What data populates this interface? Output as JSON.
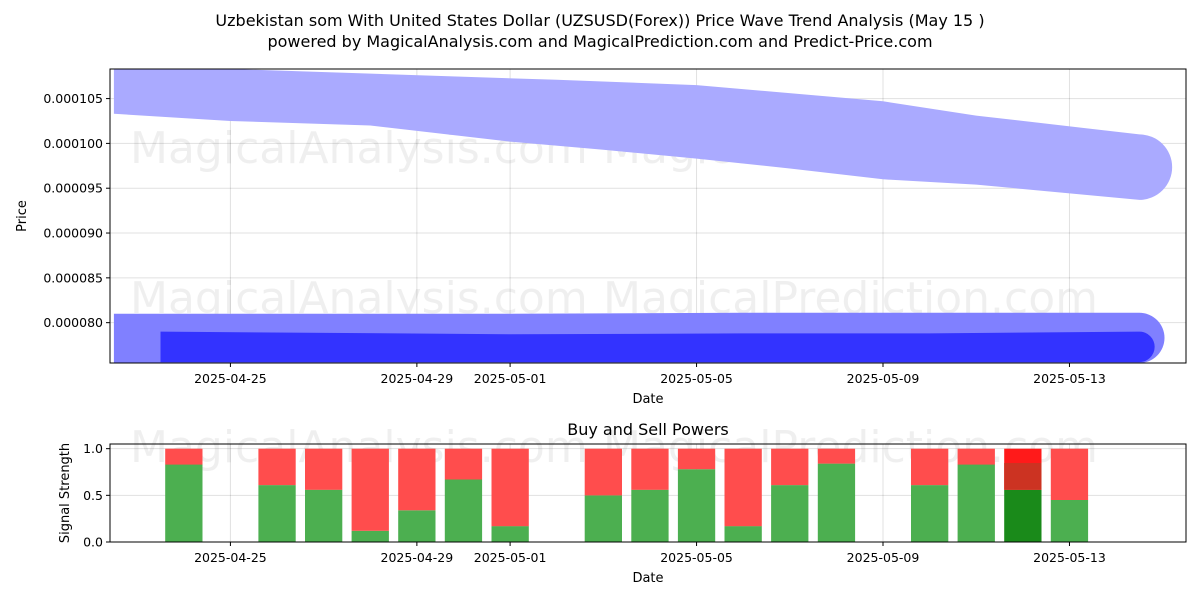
{
  "figure": {
    "title_line1": "Uzbekistan som With United States Dollar (UZSUSD(Forex)) Price Wave Trend Analysis (May 15 )",
    "title_line2": "powered by MagicalAnalysis.com and MagicalPrediction.com and Predict-Price.com",
    "watermarks": [
      "MagicalAnalysis.com",
      "MagicalPrediction.com"
    ]
  },
  "chart_data": [
    {
      "type": "area",
      "title": "",
      "xlabel": "Date",
      "ylabel": "Price",
      "xlim": [
        "2025-04-22T10:00",
        "2025-05-15T12:00"
      ],
      "ylim": [
        7.55e-05,
        0.0001083
      ],
      "x_ticks": [
        "2025-04-25",
        "2025-04-29",
        "2025-05-01",
        "2025-05-05",
        "2025-05-09",
        "2025-05-13"
      ],
      "y_ticks": [
        8e-05,
        8.5e-05,
        9e-05,
        9.5e-05,
        0.0001,
        0.000105
      ],
      "y_tick_labels": [
        "0.000080",
        "0.000085",
        "0.000090",
        "0.000095",
        "0.000100",
        "0.000105"
      ],
      "grid": true,
      "series": [
        {
          "color": "#aaaaff",
          "upper": [
            {
              "x": "2025-04-22T12:00",
              "y": 0.0001083
            },
            {
              "x": "2025-04-25",
              "y": 0.0001083
            },
            {
              "x": "2025-05-02",
              "y": 0.0001071
            },
            {
              "x": "2025-05-05",
              "y": 0.0001065
            },
            {
              "x": "2025-05-09",
              "y": 0.0001047
            },
            {
              "x": "2025-05-11",
              "y": 0.0001031
            },
            {
              "x": "2025-05-14T12:00",
              "y": 0.000101
            }
          ],
          "lower": [
            {
              "x": "2025-04-22T12:00",
              "y": 0.0001033
            },
            {
              "x": "2025-04-25",
              "y": 0.0001025
            },
            {
              "x": "2025-04-28",
              "y": 0.000102
            },
            {
              "x": "2025-05-01",
              "y": 0.0001002
            },
            {
              "x": "2025-05-03",
              "y": 9.93e-05
            },
            {
              "x": "2025-05-05",
              "y": 9.83e-05
            },
            {
              "x": "2025-05-07",
              "y": 9.72e-05
            },
            {
              "x": "2025-05-09",
              "y": 9.6e-05
            },
            {
              "x": "2025-05-11",
              "y": 9.54e-05
            },
            {
              "x": "2025-05-14T12:00",
              "y": 9.37e-05
            }
          ]
        },
        {
          "color": "#8080ff",
          "upper": [
            {
              "x": "2025-04-22T12:00",
              "y": 8.1e-05
            },
            {
              "x": "2025-05-01",
              "y": 8.1e-05
            },
            {
              "x": "2025-05-06",
              "y": 8.11e-05
            },
            {
              "x": "2025-05-10",
              "y": 8.11e-05
            },
            {
              "x": "2025-05-14T12:00",
              "y": 8.11e-05
            }
          ],
          "lower": [
            {
              "x": "2025-04-22T12:00",
              "y": 7.55e-05
            },
            {
              "x": "2025-05-14T12:00",
              "y": 7.55e-05
            }
          ]
        },
        {
          "color": "#3333ff",
          "upper": [
            {
              "x": "2025-04-23T12:00",
              "y": 7.9e-05
            },
            {
              "x": "2025-05-01",
              "y": 7.87e-05
            },
            {
              "x": "2025-05-06",
              "y": 7.88e-05
            },
            {
              "x": "2025-05-10",
              "y": 7.88e-05
            },
            {
              "x": "2025-05-14T12:00",
              "y": 7.9e-05
            }
          ],
          "lower": [
            {
              "x": "2025-04-23T12:00",
              "y": 7.56e-05
            },
            {
              "x": "2025-05-14T12:00",
              "y": 7.56e-05
            }
          ]
        }
      ]
    },
    {
      "type": "bar",
      "title": "Buy and Sell Powers",
      "xlabel": "Date",
      "ylabel": "Signal Strength",
      "xlim": [
        "2025-04-22T10:00",
        "2025-05-15T12:00"
      ],
      "ylim": [
        0,
        1.05
      ],
      "x_ticks": [
        "2025-04-25",
        "2025-04-29",
        "2025-05-01",
        "2025-05-05",
        "2025-05-09",
        "2025-05-13"
      ],
      "y_ticks": [
        0.0,
        0.5,
        1.0
      ],
      "y_tick_labels": [
        "0.0",
        "0.5",
        "1.0"
      ],
      "grid": true,
      "colors": {
        "buy": "#4caf50",
        "sell": "#ff4d4d",
        "buy_highlight": "#1a8a1a",
        "sell_highlight": "#ff1a1a",
        "sell_highlight_shade": "#cc3322"
      },
      "categories": [
        "2025-04-24",
        "2025-04-26",
        "2025-04-27",
        "2025-04-28",
        "2025-04-29",
        "2025-04-30",
        "2025-05-01",
        "2025-05-03",
        "2025-05-04",
        "2025-05-05",
        "2025-05-06",
        "2025-05-07",
        "2025-05-08",
        "2025-05-10",
        "2025-05-11",
        "2025-05-12",
        "2025-05-13"
      ],
      "series": [
        {
          "name": "buy",
          "values": [
            0.83,
            0.61,
            0.56,
            0.12,
            0.34,
            0.67,
            0.17,
            0.5,
            0.56,
            0.78,
            0.17,
            0.61,
            0.84,
            0.61,
            0.83,
            0.56,
            0.45
          ]
        },
        {
          "name": "sell",
          "values": [
            0.17,
            0.39,
            0.44,
            0.88,
            0.66,
            0.33,
            0.83,
            0.5,
            0.44,
            0.22,
            0.83,
            0.39,
            0.16,
            0.39,
            0.17,
            0.44,
            0.55
          ]
        }
      ],
      "highlight_index": 15
    }
  ]
}
